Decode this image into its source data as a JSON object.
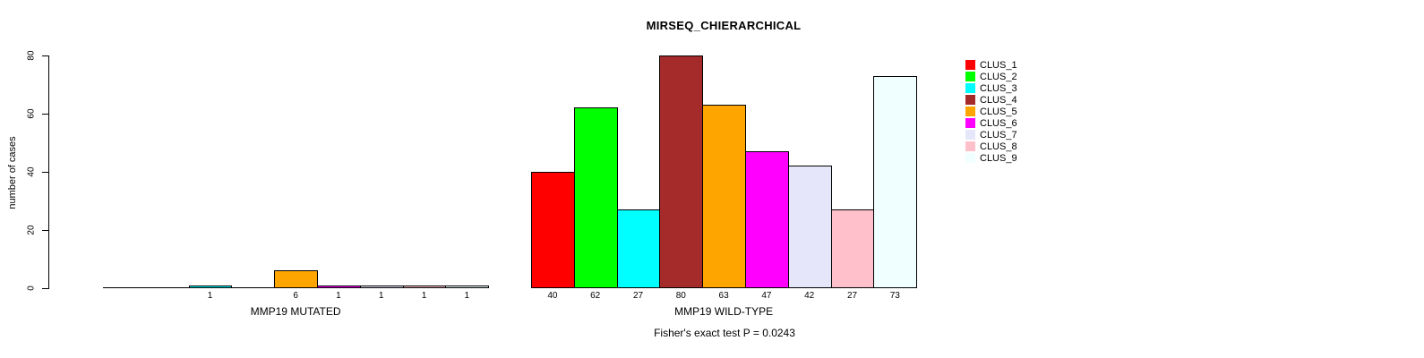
{
  "chart_data": {
    "type": "bar",
    "title": "MIRSEQ_CHIERARCHICAL",
    "ylabel": "number of cases",
    "ylim": [
      0,
      80
    ],
    "yticks": [
      0,
      20,
      40,
      60,
      80
    ],
    "grid": false,
    "legend_position": "right",
    "bar_border_color": "#000000",
    "legend": [
      {
        "label": "CLUS_1",
        "color": "#FF0000"
      },
      {
        "label": "CLUS_2",
        "color": "#00FF00"
      },
      {
        "label": "CLUS_3",
        "color": "#00FFFF"
      },
      {
        "label": "CLUS_4",
        "color": "#A52A2A"
      },
      {
        "label": "CLUS_5",
        "color": "#FFA500"
      },
      {
        "label": "CLUS_6",
        "color": "#FF00FF"
      },
      {
        "label": "CLUS_7",
        "color": "#E6E6FA"
      },
      {
        "label": "CLUS_8",
        "color": "#FFC0CB"
      },
      {
        "label": "CLUS_9",
        "color": "#F0FFFF"
      }
    ],
    "groups": [
      {
        "label": "MMP19 MUTATED",
        "categories": [
          "CLUS_1",
          "CLUS_2",
          "CLUS_3",
          "CLUS_4",
          "CLUS_5",
          "CLUS_6",
          "CLUS_7",
          "CLUS_8",
          "CLUS_9"
        ],
        "values": [
          0,
          0,
          1,
          0,
          6,
          1,
          1,
          1,
          1
        ],
        "bar_labels": [
          "",
          "",
          "1",
          "",
          "6",
          "1",
          "1",
          "1",
          "1"
        ]
      },
      {
        "label": "MMP19 WILD-TYPE",
        "categories": [
          "CLUS_1",
          "CLUS_2",
          "CLUS_3",
          "CLUS_4",
          "CLUS_5",
          "CLUS_6",
          "CLUS_7",
          "CLUS_8",
          "CLUS_9"
        ],
        "values": [
          40,
          62,
          27,
          80,
          63,
          47,
          42,
          27,
          73
        ],
        "bar_labels": [
          "40",
          "62",
          "27",
          "80",
          "63",
          "47",
          "42",
          "27",
          "73"
        ]
      }
    ],
    "footnote": "Fisher's exact test P = 0.0243"
  }
}
